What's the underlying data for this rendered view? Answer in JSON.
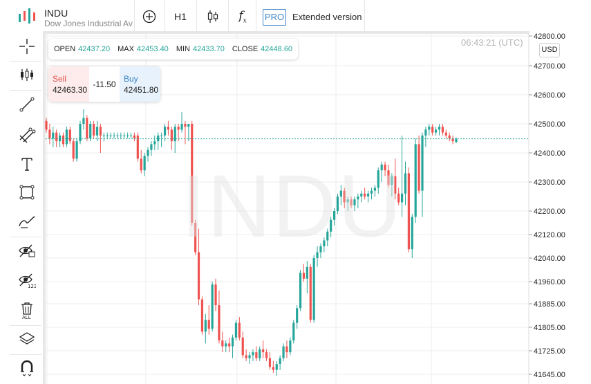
{
  "header": {
    "symbol": "INDU",
    "symbol_name": "Dow Jones Industrial Average",
    "timeframe": "H1",
    "pro_badge": "PRO",
    "extended_label": "Extended version"
  },
  "toolbar_icons": [
    "add-indicator-icon",
    "candles-icon",
    "formula-icon"
  ],
  "sidebar": {
    "icons": [
      "crosshair-icon",
      "candle-settings-icon",
      "trend-line-icon",
      "fib-tool-icon",
      "text-tool-icon",
      "rectangle-icon",
      "brush-icon",
      "hide-drawings-icon",
      "hide-indicators-icon",
      "delete-all-icon",
      "layers-icon",
      "magnet-icon"
    ]
  },
  "ohlc": {
    "open_label": "OPEN",
    "open": "42437.20",
    "max_label": "MAX",
    "max": "42453.40",
    "min_label": "MIN",
    "min": "42433.70",
    "close_label": "CLOSE",
    "close": "42448.60"
  },
  "trade": {
    "sell_label": "Sell",
    "sell_price": "42463.30",
    "spread": "-11.50",
    "buy_label": "Buy",
    "buy_price": "42451.80"
  },
  "time": "06:43:21 (UTC)",
  "currency": "USD",
  "watermark": "INDU",
  "colors": {
    "up": "#26a69a",
    "down": "#ef5350",
    "brand_red": "#e0514c",
    "brand_green": "#26a69a",
    "accent": "#3d84c6"
  },
  "chart_data": {
    "type": "candlestick",
    "y_ticks": [
      "42800.00",
      "42700.00",
      "42600.00",
      "42500.00",
      "42400.00",
      "42300.00",
      "42200.00",
      "42120.00",
      "42040.00",
      "41960.00",
      "41885.00",
      "41805.00",
      "41725.00",
      "41645.00"
    ],
    "ylim": [
      41640,
      42810
    ],
    "current_price": 42448.6,
    "grid": true,
    "candles": [
      [
        42510,
        42520,
        42470,
        42480
      ],
      [
        42480,
        42500,
        42430,
        42450
      ],
      [
        42450,
        42490,
        42420,
        42470
      ],
      [
        42470,
        42480,
        42420,
        42440
      ],
      [
        42440,
        42470,
        42420,
        42460
      ],
      [
        42460,
        42470,
        42420,
        42430
      ],
      [
        42430,
        42490,
        42420,
        42480
      ],
      [
        42480,
        42490,
        42430,
        42440
      ],
      [
        42440,
        42450,
        42370,
        42380
      ],
      [
        42380,
        42450,
        42370,
        42440
      ],
      [
        42440,
        42510,
        42430,
        42500
      ],
      [
        42500,
        42550,
        42480,
        42520
      ],
      [
        42520,
        42530,
        42440,
        42450
      ],
      [
        42450,
        42510,
        42440,
        42500
      ],
      [
        42500,
        42510,
        42450,
        42460
      ],
      [
        42460,
        42510,
        42440,
        42490
      ],
      [
        42490,
        42500,
        42400,
        42460
      ],
      [
        42460,
        42470,
        42440,
        42460
      ],
      [
        42460,
        42470,
        42450,
        42460
      ],
      [
        42460,
        42470,
        42450,
        42460
      ],
      [
        42460,
        42470,
        42450,
        42460
      ],
      [
        42460,
        42470,
        42450,
        42460
      ],
      [
        42460,
        42470,
        42450,
        42460
      ],
      [
        42460,
        42470,
        42450,
        42460
      ],
      [
        42460,
        42470,
        42450,
        42460
      ],
      [
        42460,
        42470,
        42450,
        42460
      ],
      [
        42460,
        42470,
        42440,
        42450
      ],
      [
        42460,
        42470,
        42370,
        42380
      ],
      [
        42380,
        42410,
        42330,
        42340
      ],
      [
        42340,
        42400,
        42320,
        42390
      ],
      [
        42390,
        42420,
        42370,
        42410
      ],
      [
        42410,
        42440,
        42390,
        42430
      ],
      [
        42430,
        42460,
        42410,
        42440
      ],
      [
        42440,
        42470,
        42410,
        42460
      ],
      [
        42460,
        42470,
        42420,
        42460
      ],
      [
        42460,
        42500,
        42440,
        42490
      ],
      [
        42490,
        42510,
        42460,
        42480
      ],
      [
        42480,
        42490,
        42410,
        42440
      ],
      [
        42440,
        42500,
        42400,
        42490
      ],
      [
        42490,
        42500,
        42440,
        42480
      ],
      [
        42480,
        42540,
        42470,
        42500
      ],
      [
        42500,
        42510,
        42430,
        42490
      ],
      [
        42490,
        42500,
        42440,
        42500
      ],
      [
        42500,
        42510,
        42150,
        42160
      ],
      [
        42160,
        42170,
        42050,
        42060
      ],
      [
        42060,
        42140,
        41880,
        41900
      ],
      [
        41900,
        41910,
        41780,
        41790
      ],
      [
        41790,
        41850,
        41750,
        41830
      ],
      [
        41830,
        41880,
        41780,
        41800
      ],
      [
        41800,
        41960,
        41790,
        41950
      ],
      [
        41950,
        41970,
        41860,
        41880
      ],
      [
        41880,
        41930,
        41750,
        41760
      ],
      [
        41760,
        41790,
        41720,
        41740
      ],
      [
        41740,
        41760,
        41720,
        41750
      ],
      [
        41750,
        41770,
        41720,
        41740
      ],
      [
        41740,
        41780,
        41700,
        41770
      ],
      [
        41770,
        41830,
        41760,
        41820
      ],
      [
        41820,
        41840,
        41760,
        41770
      ],
      [
        41770,
        41790,
        41700,
        41710
      ],
      [
        41710,
        41730,
        41690,
        41700
      ],
      [
        41700,
        41720,
        41680,
        41710
      ],
      [
        41710,
        41730,
        41690,
        41720
      ],
      [
        41720,
        41740,
        41690,
        41700
      ],
      [
        41700,
        41740,
        41690,
        41730
      ],
      [
        41730,
        41760,
        41700,
        41720
      ],
      [
        41720,
        41730,
        41690,
        41700
      ],
      [
        41700,
        41720,
        41660,
        41670
      ],
      [
        41670,
        41690,
        41650,
        41660
      ],
      [
        41660,
        41690,
        41640,
        41680
      ],
      [
        41680,
        41710,
        41660,
        41700
      ],
      [
        41700,
        41750,
        41690,
        41740
      ],
      [
        41740,
        41760,
        41700,
        41720
      ],
      [
        41720,
        41770,
        41710,
        41760
      ],
      [
        41760,
        41830,
        41750,
        41820
      ],
      [
        41820,
        41880,
        41800,
        41870
      ],
      [
        41870,
        42000,
        41860,
        41990
      ],
      [
        41990,
        42020,
        41960,
        41970
      ],
      [
        41970,
        42030,
        41920,
        42010
      ],
      [
        42010,
        42020,
        41820,
        41830
      ],
      [
        41830,
        42050,
        41820,
        42040
      ],
      [
        42040,
        42080,
        42010,
        42060
      ],
      [
        42060,
        42090,
        42040,
        42080
      ],
      [
        42080,
        42110,
        42060,
        42100
      ],
      [
        42100,
        42140,
        42080,
        42130
      ],
      [
        42130,
        42180,
        42110,
        42170
      ],
      [
        42170,
        42210,
        42150,
        42200
      ],
      [
        42200,
        42260,
        42190,
        42250
      ],
      [
        42250,
        42290,
        42220,
        42270
      ],
      [
        42270,
        42280,
        42210,
        42230
      ],
      [
        42230,
        42250,
        42200,
        42240
      ],
      [
        42240,
        42250,
        42210,
        42220
      ],
      [
        42220,
        42250,
        42200,
        42240
      ],
      [
        42240,
        42260,
        42210,
        42250
      ],
      [
        42250,
        42270,
        42230,
        42260
      ],
      [
        42260,
        42280,
        42240,
        42250
      ],
      [
        42250,
        42270,
        42230,
        42260
      ],
      [
        42260,
        42280,
        42240,
        42270
      ],
      [
        42270,
        42290,
        42250,
        42280
      ],
      [
        42280,
        42350,
        42260,
        42340
      ],
      [
        42340,
        42370,
        42300,
        42360
      ],
      [
        42360,
        42370,
        42320,
        42340
      ],
      [
        42340,
        42360,
        42280,
        42290
      ],
      [
        42290,
        42330,
        42250,
        42320
      ],
      [
        42320,
        42380,
        42240,
        42260
      ],
      [
        42260,
        42280,
        42220,
        42230
      ],
      [
        42230,
        42460,
        42180,
        42260
      ],
      [
        42260,
        42370,
        42220,
        42330
      ],
      [
        42330,
        42350,
        42060,
        42070
      ],
      [
        42070,
        42190,
        42040,
        42180
      ],
      [
        42180,
        42450,
        42160,
        42430
      ],
      [
        42430,
        42460,
        42260,
        42270
      ],
      [
        42270,
        42470,
        42180,
        42460
      ],
      [
        42460,
        42490,
        42420,
        42480
      ],
      [
        42480,
        42500,
        42460,
        42490
      ],
      [
        42490,
        42500,
        42460,
        42470
      ],
      [
        42470,
        42490,
        42460,
        42480
      ],
      [
        42480,
        42500,
        42460,
        42490
      ],
      [
        42490,
        42500,
        42460,
        42470
      ],
      [
        42470,
        42480,
        42450,
        42460
      ],
      [
        42460,
        42470,
        42440,
        42450
      ],
      [
        42450,
        42460,
        42430,
        42440
      ],
      [
        42437.2,
        42453.4,
        42433.7,
        42448.6
      ]
    ]
  }
}
